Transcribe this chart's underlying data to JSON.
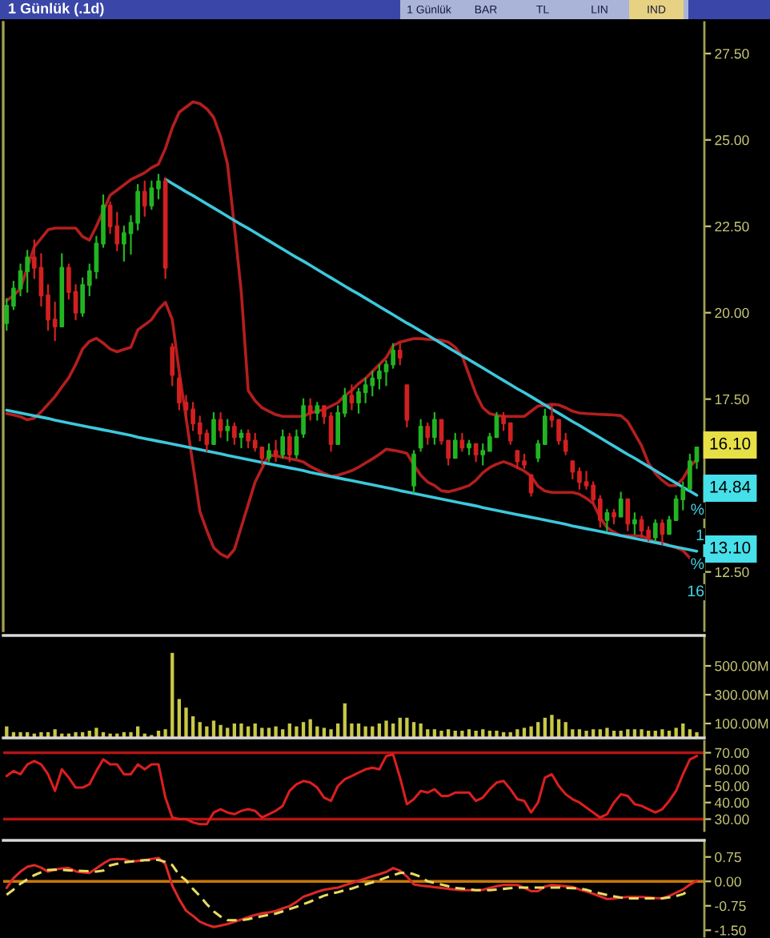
{
  "chart_data": [
    {
      "type": "candlestick",
      "title": "1 Günlük (.1d)",
      "categories": [
        null,
        null,
        null,
        null,
        null,
        null,
        null,
        null,
        null,
        null,
        null,
        null,
        null,
        null,
        null,
        null,
        null,
        null,
        null,
        null,
        null,
        null,
        null,
        null,
        null,
        null,
        null,
        null,
        null,
        null,
        null,
        null,
        null,
        null,
        null,
        null,
        null,
        null,
        null,
        null,
        null,
        null,
        null,
        null,
        null,
        null,
        null,
        null,
        null,
        null,
        null,
        null,
        null,
        null,
        null,
        null,
        null,
        null,
        null,
        null,
        null,
        null,
        null,
        null,
        null,
        null,
        null,
        null,
        null,
        null,
        null,
        null,
        null,
        null,
        null,
        null,
        null,
        null,
        null,
        null,
        null,
        null,
        null,
        null,
        null,
        null,
        null,
        null,
        null,
        null,
        null,
        null,
        null,
        null,
        null,
        null,
        null,
        null,
        null,
        null,
        null
      ],
      "ohlc": [
        [
          19.7,
          20.4,
          19.5,
          20.2
        ],
        [
          20.2,
          20.9,
          20.1,
          20.7
        ],
        [
          20.7,
          21.4,
          20.5,
          21.2
        ],
        [
          21.2,
          21.8,
          20.6,
          21.6
        ],
        [
          21.6,
          22.1,
          21.0,
          21.3
        ],
        [
          21.3,
          21.7,
          20.2,
          20.5
        ],
        [
          20.5,
          20.8,
          19.5,
          19.8
        ],
        [
          19.8,
          20.3,
          19.2,
          19.6
        ],
        [
          19.6,
          21.7,
          19.6,
          21.3
        ],
        [
          21.3,
          21.4,
          20.4,
          20.6
        ],
        [
          20.6,
          20.8,
          19.8,
          20.0
        ],
        [
          20.0,
          21.0,
          19.9,
          20.8
        ],
        [
          20.8,
          21.4,
          20.5,
          21.2
        ],
        [
          21.2,
          22.2,
          21.0,
          22.0
        ],
        [
          22.0,
          23.4,
          21.9,
          23.1
        ],
        [
          23.1,
          23.2,
          22.3,
          22.5
        ],
        [
          22.5,
          22.9,
          21.8,
          22.0
        ],
        [
          22.0,
          22.5,
          21.5,
          22.3
        ],
        [
          22.3,
          22.8,
          21.7,
          22.6
        ],
        [
          22.6,
          23.7,
          22.4,
          23.5
        ],
        [
          23.5,
          23.8,
          22.8,
          23.1
        ],
        [
          23.1,
          23.8,
          23.0,
          23.6
        ],
        [
          23.6,
          24.0,
          23.3,
          23.8
        ],
        [
          23.8,
          23.9,
          21.0,
          21.3
        ],
        [
          19.0,
          19.1,
          17.9,
          18.2
        ],
        [
          18.1,
          18.2,
          17.2,
          17.4
        ],
        [
          17.4,
          17.6,
          16.9,
          17.2
        ],
        [
          17.2,
          17.4,
          16.6,
          16.8
        ],
        [
          16.8,
          17.0,
          16.3,
          16.5
        ],
        [
          16.5,
          16.6,
          16.0,
          16.2
        ],
        [
          16.2,
          17.1,
          16.2,
          16.9
        ],
        [
          16.9,
          17.1,
          16.4,
          16.6
        ],
        [
          16.6,
          16.9,
          16.3,
          16.7
        ],
        [
          16.7,
          16.8,
          16.2,
          16.4
        ],
        [
          16.4,
          16.6,
          16.1,
          16.5
        ],
        [
          16.5,
          16.6,
          16.1,
          16.3
        ],
        [
          16.3,
          16.5,
          16.0,
          16.1
        ],
        [
          16.1,
          16.1,
          15.6,
          15.8
        ],
        [
          15.8,
          16.2,
          15.7,
          16.0
        ],
        [
          16.0,
          16.3,
          15.7,
          15.9
        ],
        [
          15.9,
          16.6,
          15.8,
          16.4
        ],
        [
          16.4,
          16.5,
          15.7,
          15.9
        ],
        [
          15.9,
          16.6,
          15.8,
          16.4
        ],
        [
          16.5,
          17.5,
          16.4,
          17.3
        ],
        [
          17.3,
          17.5,
          16.9,
          17.1
        ],
        [
          17.1,
          17.4,
          16.9,
          17.3
        ],
        [
          17.3,
          17.3,
          16.8,
          17.0
        ],
        [
          17.0,
          17.1,
          16.0,
          16.2
        ],
        [
          16.2,
          17.3,
          16.2,
          17.1
        ],
        [
          17.1,
          17.8,
          17.0,
          17.6
        ],
        [
          17.6,
          17.9,
          17.2,
          17.4
        ],
        [
          17.4,
          17.8,
          17.1,
          17.7
        ],
        [
          17.7,
          18.1,
          17.4,
          17.9
        ],
        [
          17.9,
          18.3,
          17.6,
          18.1
        ],
        [
          18.1,
          18.5,
          17.8,
          18.3
        ],
        [
          18.3,
          18.6,
          17.9,
          18.5
        ],
        [
          18.5,
          19.1,
          18.4,
          18.9
        ],
        [
          18.9,
          19.1,
          18.5,
          18.7
        ],
        [
          17.9,
          17.9,
          16.7,
          16.9
        ],
        [
          15.0,
          16.0,
          14.8,
          15.9
        ],
        [
          16.1,
          16.9,
          16.0,
          16.7
        ],
        [
          16.7,
          16.8,
          16.2,
          16.4
        ],
        [
          16.4,
          17.1,
          16.2,
          16.9
        ],
        [
          16.9,
          16.9,
          16.2,
          16.3
        ],
        [
          16.3,
          16.3,
          15.6,
          15.8
        ],
        [
          15.8,
          16.5,
          15.8,
          16.3
        ],
        [
          16.3,
          16.5,
          16.0,
          16.1
        ],
        [
          16.1,
          16.3,
          15.9,
          16.2
        ],
        [
          16.2,
          16.2,
          15.7,
          15.9
        ],
        [
          15.9,
          16.2,
          15.6,
          16.0
        ],
        [
          16.0,
          16.5,
          16.0,
          16.4
        ],
        [
          16.4,
          17.1,
          16.4,
          17.0
        ],
        [
          17.0,
          17.1,
          16.6,
          16.8
        ],
        [
          16.8,
          16.8,
          16.2,
          16.3
        ],
        [
          16.0,
          16.0,
          15.5,
          15.7
        ],
        [
          15.7,
          15.9,
          15.5,
          15.6
        ],
        [
          15.3,
          15.3,
          14.7,
          14.8
        ],
        [
          15.8,
          16.3,
          15.7,
          16.2
        ],
        [
          16.2,
          17.2,
          16.2,
          17.0
        ],
        [
          17.0,
          17.3,
          16.7,
          16.9
        ],
        [
          16.9,
          16.9,
          16.2,
          16.3
        ],
        [
          16.3,
          16.5,
          15.9,
          16.0
        ],
        [
          15.7,
          15.7,
          15.2,
          15.4
        ],
        [
          15.4,
          15.5,
          14.9,
          15.1
        ],
        [
          15.1,
          15.4,
          14.9,
          15.0
        ],
        [
          15.0,
          15.1,
          14.5,
          14.6
        ],
        [
          14.6,
          14.7,
          13.8,
          14.0
        ],
        [
          14.0,
          14.3,
          13.7,
          14.2
        ],
        [
          14.2,
          14.3,
          13.9,
          14.1
        ],
        [
          14.1,
          14.8,
          14.1,
          14.6
        ],
        [
          14.6,
          14.6,
          13.7,
          13.9
        ],
        [
          13.9,
          14.2,
          13.6,
          14.0
        ],
        [
          14.0,
          14.1,
          13.5,
          13.7
        ],
        [
          13.7,
          13.8,
          13.4,
          13.5
        ],
        [
          13.5,
          14.0,
          13.4,
          13.9
        ],
        [
          13.9,
          14.0,
          13.3,
          13.6
        ],
        [
          13.6,
          14.1,
          13.6,
          14.0
        ],
        [
          14.0,
          14.7,
          14.0,
          14.6
        ],
        [
          14.6,
          15.1,
          14.3,
          14.9
        ],
        [
          14.9,
          15.9,
          14.9,
          15.7
        ],
        [
          15.7,
          16.1,
          15.5,
          16.1
        ]
      ],
      "colors": [
        "#22b422",
        "#22b422",
        "#22b422",
        "#22b422",
        "#d22020",
        "#d22020",
        "#d22020",
        "#d22020",
        "#22b422",
        "#d22020",
        "#d22020",
        "#22b422",
        "#22b422",
        "#22b422",
        "#22b422",
        "#d22020",
        "#d22020",
        "#22b422",
        "#22b422",
        "#22b422",
        "#d22020",
        "#22b422",
        "#22b422",
        "#d22020",
        "#d22020",
        "#d22020",
        "#d22020",
        "#d22020",
        "#d22020",
        "#d22020",
        "#22b422",
        "#d22020",
        "#22b422",
        "#d22020",
        "#22b422",
        "#d22020",
        "#d22020",
        "#d22020",
        "#22b422",
        "#d22020",
        "#22b422",
        "#d22020",
        "#22b422",
        "#22b422",
        "#d22020",
        "#22b422",
        "#d22020",
        "#d22020",
        "#22b422",
        "#22b422",
        "#d22020",
        "#22b422",
        "#22b422",
        "#22b422",
        "#22b422",
        "#22b422",
        "#22b422",
        "#d22020",
        "#d22020",
        "#22b422",
        "#22b422",
        "#d22020",
        "#22b422",
        "#d22020",
        "#d22020",
        "#22b422",
        "#d22020",
        "#22b422",
        "#d22020",
        "#22b422",
        "#22b422",
        "#22b422",
        "#d22020",
        "#d22020",
        "#d22020",
        "#d22020",
        "#d22020",
        "#22b422",
        "#22b422",
        "#d22020",
        "#d22020",
        "#d22020",
        "#d22020",
        "#d22020",
        "#d22020",
        "#d22020",
        "#d22020",
        "#22b422",
        "#d22020",
        "#22b422",
        "#d22020",
        "#22b422",
        "#d22020",
        "#d22020",
        "#22b422",
        "#d22020",
        "#22b422",
        "#22b422",
        "#22b422",
        "#22b422",
        "#22b422"
      ],
      "series": [
        {
          "type": "line",
          "color": "#b41e1e",
          "values": [
            20.35,
            20.5,
            20.7,
            21.3,
            21.9,
            22.15,
            22.4,
            22.45,
            22.45,
            22.45,
            22.45,
            22.2,
            22.1,
            22.5,
            22.95,
            23.4,
            23.55,
            23.7,
            23.85,
            23.95,
            24.05,
            24.2,
            24.3,
            24.75,
            25.35,
            25.8,
            25.95,
            26.1,
            26.05,
            25.9,
            25.65,
            25.1,
            24.3,
            22.5,
            20.6,
            17.75,
            17.45,
            17.25,
            17.15,
            17.05,
            17.0,
            17.0,
            17.0,
            17.0,
            17.1,
            17.15,
            17.2,
            17.3,
            17.4,
            17.6,
            17.75,
            17.95,
            18.1,
            18.3,
            18.5,
            18.7,
            19.05,
            19.15,
            19.2,
            19.25,
            19.25,
            19.23,
            19.22,
            19.2,
            19.15,
            19.0,
            18.75,
            18.2,
            17.65,
            17.25,
            17.08,
            17.03,
            17.0,
            17.0,
            17.0,
            17.0,
            17.15,
            17.3,
            17.32,
            17.35,
            17.33,
            17.25,
            17.15,
            17.1,
            17.08,
            17.07,
            17.06,
            17.05,
            17.04,
            17.02,
            16.85,
            16.5,
            16.15,
            15.65,
            15.35,
            15.15,
            15.0,
            15.0,
            15.2,
            15.55,
            15.75
          ]
        },
        {
          "type": "line",
          "color": "#b41e1e",
          "values": [
            17.08,
            17.04,
            16.99,
            16.9,
            16.95,
            17.13,
            17.35,
            17.57,
            17.85,
            18.12,
            18.5,
            18.95,
            19.17,
            19.26,
            19.12,
            18.95,
            18.87,
            18.94,
            19.0,
            19.5,
            19.65,
            19.8,
            20.1,
            20.3,
            19.8,
            18.3,
            16.95,
            15.6,
            14.25,
            13.7,
            13.2,
            13.02,
            12.92,
            13.15,
            13.8,
            14.45,
            15.1,
            15.5,
            15.88,
            15.86,
            15.82,
            15.78,
            15.74,
            15.68,
            15.55,
            15.45,
            15.35,
            15.27,
            15.3,
            15.36,
            15.43,
            15.53,
            15.65,
            15.77,
            15.9,
            16.05,
            16.02,
            15.98,
            15.93,
            15.6,
            15.3,
            15.1,
            15.0,
            14.85,
            14.82,
            14.87,
            14.93,
            15.0,
            15.15,
            15.37,
            15.52,
            15.62,
            15.69,
            15.62,
            15.52,
            15.42,
            15.27,
            14.98,
            14.84,
            14.8,
            14.8,
            14.8,
            14.8,
            14.75,
            14.63,
            14.48,
            14.07,
            13.78,
            13.65,
            13.55,
            13.55,
            13.55,
            13.54,
            13.45,
            13.37,
            13.33,
            13.27,
            13.2,
            13.12,
            12.9,
            null
          ]
        },
        {
          "type": "line",
          "color": "#3cc8dc",
          "values": [
            null,
            null,
            null,
            null,
            null,
            null,
            null,
            null,
            null,
            null,
            null,
            null,
            null,
            null,
            null,
            null,
            null,
            null,
            null,
            null,
            null,
            null,
            null,
            23.86,
            23.74,
            23.62,
            23.5,
            23.39,
            23.27,
            23.15,
            23.03,
            22.91,
            22.79,
            22.67,
            22.55,
            22.44,
            22.32,
            22.2,
            22.08,
            21.96,
            21.84,
            21.72,
            21.6,
            21.49,
            21.37,
            21.25,
            21.13,
            21.01,
            20.89,
            20.77,
            20.65,
            20.54,
            20.42,
            20.3,
            20.18,
            20.06,
            19.94,
            19.82,
            19.7,
            19.59,
            19.47,
            19.35,
            19.23,
            19.11,
            18.99,
            18.87,
            18.75,
            18.64,
            18.52,
            18.4,
            18.28,
            18.16,
            18.04,
            17.92,
            17.8,
            17.69,
            17.57,
            17.45,
            17.33,
            17.21,
            17.09,
            16.97,
            16.85,
            16.74,
            16.62,
            16.5,
            16.38,
            16.26,
            16.14,
            16.02,
            15.9,
            15.79,
            15.67,
            15.55,
            15.43,
            15.31,
            15.19,
            15.07,
            14.95,
            14.84,
            14.72
          ]
        },
        {
          "type": "line",
          "color": "#3cc8dc",
          "values": [
            17.18,
            17.14,
            17.1,
            17.06,
            17.02,
            16.98,
            16.94,
            16.89,
            16.85,
            16.81,
            16.77,
            16.73,
            16.69,
            16.65,
            16.61,
            16.57,
            16.53,
            16.49,
            16.45,
            16.4,
            16.36,
            16.32,
            16.28,
            16.24,
            16.2,
            16.16,
            16.12,
            16.08,
            16.04,
            16.0,
            15.96,
            15.92,
            15.87,
            15.83,
            15.79,
            15.75,
            15.71,
            15.67,
            15.63,
            15.59,
            15.55,
            15.51,
            15.47,
            15.43,
            15.38,
            15.34,
            15.3,
            15.26,
            15.22,
            15.18,
            15.14,
            15.1,
            15.06,
            15.02,
            14.98,
            14.94,
            14.9,
            14.85,
            14.81,
            14.77,
            14.73,
            14.69,
            14.65,
            14.61,
            14.57,
            14.53,
            14.49,
            14.45,
            14.41,
            14.36,
            14.32,
            14.28,
            14.24,
            14.2,
            14.16,
            14.12,
            14.08,
            14.04,
            14.0,
            13.96,
            13.92,
            13.88,
            13.83,
            13.79,
            13.75,
            13.71,
            13.67,
            13.63,
            13.59,
            13.55,
            13.51,
            13.47,
            13.43,
            13.39,
            13.35,
            13.31,
            13.26,
            13.22,
            13.18,
            13.14,
            13.1
          ]
        }
      ],
      "ylim": [
        10.8,
        28.4
      ],
      "yticks": [
        {
          "value": 12.5,
          "label": "12.50"
        },
        {
          "value": 17.5,
          "label": "17.50"
        },
        {
          "value": 20,
          "label": "20.00"
        },
        {
          "value": 22.5,
          "label": "22.50"
        },
        {
          "value": 25,
          "label": "25.00"
        },
        {
          "value": 27.5,
          "label": "27.50"
        }
      ],
      "tick_labels": "y",
      "annotations": [
        "1 Günlük",
        "BAR",
        "TL",
        "LIN",
        "IND",
        "16.10",
        "14.84",
        "13.10",
        "%",
        "1",
        "%",
        "16"
      ]
    },
    {
      "type": "bar",
      "categories": [
        null,
        null,
        null,
        null,
        null,
        null,
        null,
        null,
        null,
        null,
        null,
        null,
        null,
        null,
        null,
        null,
        null,
        null,
        null,
        null,
        null,
        null,
        null,
        null,
        null,
        null,
        null,
        null,
        null,
        null,
        null,
        null,
        null,
        null,
        null,
        null,
        null,
        null,
        null,
        null,
        null,
        null,
        null,
        null,
        null,
        null,
        null,
        null,
        null,
        null,
        null,
        null,
        null,
        null,
        null,
        null,
        null,
        null,
        null,
        null,
        null,
        null,
        null,
        null,
        null,
        null,
        null,
        null,
        null,
        null,
        null,
        null,
        null,
        null,
        null,
        null,
        null,
        null,
        null,
        null,
        null,
        null,
        null,
        null,
        null,
        null,
        null,
        null,
        null,
        null,
        null,
        null,
        null,
        null,
        null,
        null,
        null,
        null,
        null,
        null,
        null
      ],
      "values": [
        80,
        40,
        40,
        40,
        30,
        40,
        40,
        60,
        30,
        30,
        40,
        40,
        50,
        70,
        40,
        30,
        30,
        40,
        40,
        80,
        30,
        20,
        50,
        60,
        590,
        270,
        210,
        150,
        110,
        80,
        120,
        90,
        70,
        100,
        100,
        80,
        100,
        70,
        70,
        80,
        60,
        100,
        80,
        110,
        130,
        80,
        70,
        60,
        100,
        240,
        100,
        100,
        80,
        80,
        100,
        120,
        100,
        140,
        140,
        110,
        100,
        60,
        60,
        50,
        60,
        50,
        50,
        60,
        50,
        60,
        50,
        50,
        40,
        40,
        60,
        70,
        80,
        110,
        140,
        160,
        130,
        110,
        60,
        60,
        50,
        60,
        60,
        70,
        50,
        50,
        60,
        60,
        60,
        50,
        50,
        60,
        50,
        70,
        100,
        60,
        40
      ],
      "color": "#c8c846",
      "ylim": [
        0,
        711
      ],
      "yticks": [
        {
          "value": 100,
          "label": "100.00M"
        },
        {
          "value": 300,
          "label": "300.00M"
        },
        {
          "value": 500,
          "label": "500.00M"
        }
      ],
      "tick_labels": "y"
    },
    {
      "type": "line",
      "categories": [
        null,
        null,
        null,
        null,
        null,
        null,
        null,
        null,
        null,
        null,
        null,
        null,
        null,
        null,
        null,
        null,
        null,
        null,
        null,
        null,
        null,
        null,
        null,
        null,
        null,
        null,
        null,
        null,
        null,
        null,
        null,
        null,
        null,
        null,
        null,
        null,
        null,
        null,
        null,
        null,
        null,
        null,
        null,
        null,
        null,
        null,
        null,
        null,
        null,
        null,
        null,
        null,
        null,
        null,
        null,
        null,
        null,
        null,
        null,
        null,
        null,
        null,
        null,
        null,
        null,
        null,
        null,
        null,
        null,
        null,
        null,
        null,
        null,
        null,
        null,
        null,
        null,
        null,
        null,
        null,
        null,
        null,
        null,
        null,
        null,
        null,
        null,
        null,
        null,
        null,
        null,
        null,
        null,
        null,
        null,
        null,
        null,
        null,
        null,
        null,
        null
      ],
      "values": [
        56,
        59,
        57,
        63,
        65,
        63,
        57,
        47,
        60,
        55,
        49,
        49,
        51,
        59,
        66,
        63,
        63,
        57,
        57,
        63,
        60,
        63,
        63,
        43,
        31,
        30,
        30,
        28,
        27,
        27,
        34,
        36,
        34,
        33,
        35,
        36,
        35,
        31,
        33,
        35,
        38,
        47,
        51,
        53,
        52,
        49,
        43,
        41,
        50,
        54,
        56,
        58,
        60,
        61,
        60,
        68,
        69,
        55,
        39,
        42,
        47,
        46,
        48,
        44,
        44,
        46,
        46,
        46,
        41,
        43,
        48,
        52,
        53,
        48,
        42,
        41,
        34,
        40,
        55,
        57,
        50,
        45,
        42,
        40,
        37,
        34,
        31,
        33,
        40,
        45,
        44,
        39,
        38,
        36,
        34,
        36,
        41,
        47,
        57,
        66,
        68
      ],
      "color": "#dc1e1e",
      "ylim": [
        23,
        77
      ],
      "yticks": [
        {
          "value": 30,
          "label": "30.00"
        },
        {
          "value": 40,
          "label": "40.00"
        },
        {
          "value": 50,
          "label": "50.00"
        },
        {
          "value": 60,
          "label": "60.00"
        },
        {
          "value": 70,
          "label": "70.00"
        }
      ],
      "ref_lines": [
        {
          "axis": "y",
          "value": 70,
          "color": "#b41414"
        },
        {
          "axis": "y",
          "value": 30,
          "color": "#b41414"
        }
      ],
      "tick_labels": "y"
    },
    {
      "type": "line",
      "categories": [
        null,
        null,
        null,
        null,
        null,
        null,
        null,
        null,
        null,
        null,
        null,
        null,
        null,
        null,
        null,
        null,
        null,
        null,
        null,
        null,
        null,
        null,
        null,
        null,
        null,
        null,
        null,
        null,
        null,
        null,
        null,
        null,
        null,
        null,
        null,
        null,
        null,
        null,
        null,
        null,
        null,
        null,
        null,
        null,
        null,
        null,
        null,
        null,
        null,
        null,
        null,
        null,
        null,
        null,
        null,
        null,
        null,
        null,
        null,
        null,
        null,
        null,
        null,
        null,
        null,
        null,
        null,
        null,
        null,
        null,
        null,
        null,
        null,
        null,
        null,
        null,
        null,
        null,
        null,
        null,
        null,
        null,
        null,
        null,
        null,
        null,
        null,
        null,
        null,
        null,
        null,
        null,
        null,
        null,
        null,
        null,
        null,
        null,
        null,
        null,
        null
      ],
      "series": [
        {
          "color": "#dc2828",
          "line_style": "solid",
          "values": [
            -0.2,
            0.1,
            0.3,
            0.45,
            0.5,
            0.42,
            0.3,
            0.36,
            0.4,
            0.41,
            0.31,
            0.28,
            0.26,
            0.4,
            0.55,
            0.67,
            0.69,
            0.68,
            0.61,
            0.63,
            0.65,
            0.69,
            0.72,
            0.53,
            -0.13,
            -0.55,
            -0.9,
            -1.06,
            -1.24,
            -1.33,
            -1.4,
            -1.36,
            -1.31,
            -1.24,
            -1.17,
            -1.1,
            -1.03,
            -0.98,
            -0.95,
            -0.91,
            -0.83,
            -0.76,
            -0.63,
            -0.47,
            -0.4,
            -0.32,
            -0.26,
            -0.22,
            -0.19,
            -0.12,
            -0.05,
            0.02,
            0.09,
            0.16,
            0.22,
            0.29,
            0.41,
            0.33,
            0.15,
            -0.09,
            -0.13,
            -0.15,
            -0.18,
            -0.2,
            -0.23,
            -0.25,
            -0.27,
            -0.27,
            -0.27,
            -0.26,
            -0.2,
            -0.15,
            -0.11,
            -0.11,
            -0.11,
            -0.2,
            -0.3,
            -0.3,
            -0.16,
            -0.11,
            -0.13,
            -0.15,
            -0.17,
            -0.25,
            -0.31,
            -0.38,
            -0.46,
            -0.54,
            -0.53,
            -0.5,
            -0.48,
            -0.48,
            -0.48,
            -0.49,
            -0.51,
            -0.52,
            -0.45,
            -0.35,
            -0.25,
            -0.1,
            0.02
          ]
        },
        {
          "color": "#e6dc64",
          "line_style": "dashed",
          "values": [
            -0.41,
            -0.25,
            -0.07,
            0.06,
            0.19,
            0.28,
            0.35,
            0.36,
            0.35,
            0.34,
            0.33,
            0.32,
            0.31,
            0.3,
            0.33,
            0.49,
            0.54,
            0.58,
            0.61,
            0.63,
            0.65,
            0.65,
            0.66,
            0.6,
            0.5,
            0.2,
            0.03,
            -0.23,
            -0.45,
            -0.7,
            -0.92,
            -1.08,
            -1.19,
            -1.19,
            -1.19,
            -1.16,
            -1.11,
            -1.07,
            -1.03,
            -0.99,
            -0.92,
            -0.85,
            -0.78,
            -0.7,
            -0.62,
            -0.53,
            -0.44,
            -0.38,
            -0.33,
            -0.27,
            -0.22,
            -0.15,
            -0.09,
            -0.03,
            0.04,
            0.12,
            0.19,
            0.26,
            0.27,
            0.22,
            0.14,
            0.0,
            -0.05,
            -0.1,
            -0.15,
            -0.2,
            -0.22,
            -0.24,
            -0.27,
            -0.27,
            -0.27,
            -0.25,
            -0.23,
            -0.21,
            -0.19,
            -0.19,
            -0.19,
            -0.19,
            -0.19,
            -0.19,
            -0.19,
            -0.2,
            -0.21,
            -0.22,
            -0.26,
            -0.32,
            -0.37,
            -0.42,
            -0.46,
            -0.5,
            -0.52,
            -0.52,
            -0.52,
            -0.52,
            -0.52,
            -0.52,
            -0.49,
            -0.45,
            -0.39,
            -0.28,
            null
          ]
        }
      ],
      "ylim": [
        -1.69,
        1.26
      ],
      "yticks": [
        {
          "value": -1.5,
          "label": "-1.50"
        },
        {
          "value": -0.75,
          "label": "-0.75"
        },
        {
          "value": 0,
          "label": "0.00"
        },
        {
          "value": 0.75,
          "label": "0.75"
        }
      ],
      "ref_lines": [
        {
          "axis": "y",
          "value": 0,
          "color": "#c8780a"
        }
      ],
      "tick_labels": "y"
    }
  ]
}
